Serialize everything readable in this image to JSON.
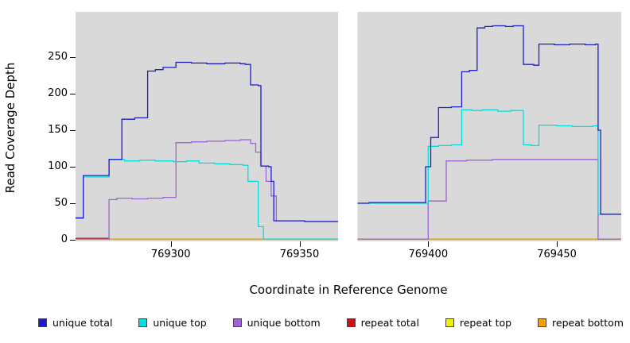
{
  "chart_data": {
    "type": "line",
    "subtype": "step",
    "title": "",
    "xlabel": "Coordinate in Reference Genome",
    "ylabel": "Read Coverage Depth",
    "x_domain": [
      769263,
      769475
    ],
    "y_domain": [
      0,
      312
    ],
    "x_ticks": [
      769300,
      769350,
      769400,
      769450
    ],
    "y_ticks": [
      0,
      50,
      100,
      150,
      200,
      250
    ],
    "panel_bg": "#d9d9d9",
    "gap_region": [
      769365,
      769372.5
    ],
    "grid": false,
    "legend_position": "bottom",
    "draw_order": [
      4,
      3,
      5,
      2,
      1,
      0
    ],
    "series": [
      {
        "name": "unique total",
        "color": "#1c1ccd",
        "segments": [
          [
            [
              769263,
              30
            ],
            [
              769266,
              88
            ],
            [
              769276,
              110
            ],
            [
              769281,
              165
            ],
            [
              769286,
              167
            ],
            [
              769291,
              231
            ],
            [
              769294,
              233
            ],
            [
              769297,
              236
            ],
            [
              769302,
              243
            ],
            [
              769308,
              242
            ],
            [
              769314,
              241
            ],
            [
              769321,
              242
            ],
            [
              769327,
              241
            ],
            [
              769329,
              240
            ],
            [
              769331,
              212
            ],
            [
              769334,
              211
            ],
            [
              769335,
              101
            ],
            [
              769338,
              100
            ],
            [
              769339,
              80
            ],
            [
              769340,
              26
            ],
            [
              769352,
              25
            ],
            [
              769365,
              25
            ]
          ],
          [
            [
              769372.5,
              50
            ],
            [
              769377,
              51
            ],
            [
              769397,
              51
            ],
            [
              769399,
              100
            ],
            [
              769401,
              140
            ],
            [
              769404,
              181
            ],
            [
              769409,
              182
            ],
            [
              769413,
              230
            ],
            [
              769416,
              232
            ],
            [
              769419,
              290
            ],
            [
              769422,
              292
            ],
            [
              769425,
              293
            ],
            [
              769430,
              292
            ],
            [
              769433,
              293
            ],
            [
              769437,
              240
            ],
            [
              769441,
              239
            ],
            [
              769443,
              268
            ],
            [
              769449,
              267
            ],
            [
              769455,
              268
            ],
            [
              769461,
              267
            ],
            [
              769465,
              268
            ],
            [
              769466,
              150
            ],
            [
              769467,
              35
            ],
            [
              769475,
              35
            ]
          ]
        ]
      },
      {
        "name": "unique top",
        "color": "#00dede",
        "segments": [
          [
            [
              769263,
              29
            ],
            [
              769266,
              86
            ],
            [
              769276,
              110
            ],
            [
              769282,
              108
            ],
            [
              769288,
              109
            ],
            [
              769294,
              108
            ],
            [
              769301,
              107
            ],
            [
              769306,
              108
            ],
            [
              769311,
              105
            ],
            [
              769317,
              104
            ],
            [
              769323,
              103
            ],
            [
              769328,
              102
            ],
            [
              769330,
              80
            ],
            [
              769334,
              18
            ],
            [
              769336,
              1
            ],
            [
              769365,
              1
            ]
          ],
          [
            [
              769372.5,
              50
            ],
            [
              769397,
              50
            ],
            [
              769400,
              128
            ],
            [
              769404,
              129
            ],
            [
              769409,
              130
            ],
            [
              769413,
              178
            ],
            [
              769417,
              177
            ],
            [
              769421,
              178
            ],
            [
              769427,
              176
            ],
            [
              769432,
              177
            ],
            [
              769437,
              130
            ],
            [
              769440,
              129
            ],
            [
              769443,
              157
            ],
            [
              769450,
              156
            ],
            [
              769456,
              155
            ],
            [
              769464,
              156
            ],
            [
              769466,
              35
            ],
            [
              769475,
              35
            ]
          ]
        ]
      },
      {
        "name": "unique bottom",
        "color": "#9b63d3",
        "segments": [
          [
            [
              769263,
              1
            ],
            [
              769276,
              55
            ],
            [
              769279,
              57
            ],
            [
              769285,
              56
            ],
            [
              769291,
              57
            ],
            [
              769297,
              58
            ],
            [
              769302,
              133
            ],
            [
              769308,
              134
            ],
            [
              769314,
              135
            ],
            [
              769321,
              136
            ],
            [
              769327,
              137
            ],
            [
              769331,
              132
            ],
            [
              769333,
              120
            ],
            [
              769335,
              101
            ],
            [
              769337,
              80
            ],
            [
              769339,
              60
            ],
            [
              769341,
              26
            ],
            [
              769352,
              25
            ],
            [
              769365,
              25
            ]
          ],
          [
            [
              769372.5,
              1
            ],
            [
              769399,
              1
            ],
            [
              769400,
              53
            ],
            [
              769407,
              108
            ],
            [
              769415,
              109
            ],
            [
              769425,
              110
            ],
            [
              769445,
              110
            ],
            [
              769460,
              110
            ],
            [
              769466,
              1
            ],
            [
              769475,
              1
            ]
          ]
        ]
      },
      {
        "name": "repeat total",
        "color": "#cc1111",
        "segments": [
          [
            [
              769263,
              2
            ],
            [
              769274,
              2
            ],
            [
              769276,
              1
            ],
            [
              769365,
              1
            ]
          ],
          [
            [
              769372.5,
              1
            ],
            [
              769475,
              1
            ]
          ]
        ]
      },
      {
        "name": "repeat top",
        "color": "#f0f000",
        "segments": [
          [
            [
              769263,
              0.5
            ],
            [
              769365,
              0.5
            ]
          ],
          [
            [
              769372.5,
              0.5
            ],
            [
              769475,
              0.5
            ]
          ]
        ]
      },
      {
        "name": "repeat bottom",
        "color": "#ff9d00",
        "segments": [
          [
            [
              769263,
              1
            ],
            [
              769365,
              1
            ]
          ],
          [
            [
              769372.5,
              1
            ],
            [
              769475,
              1
            ]
          ]
        ]
      }
    ]
  }
}
